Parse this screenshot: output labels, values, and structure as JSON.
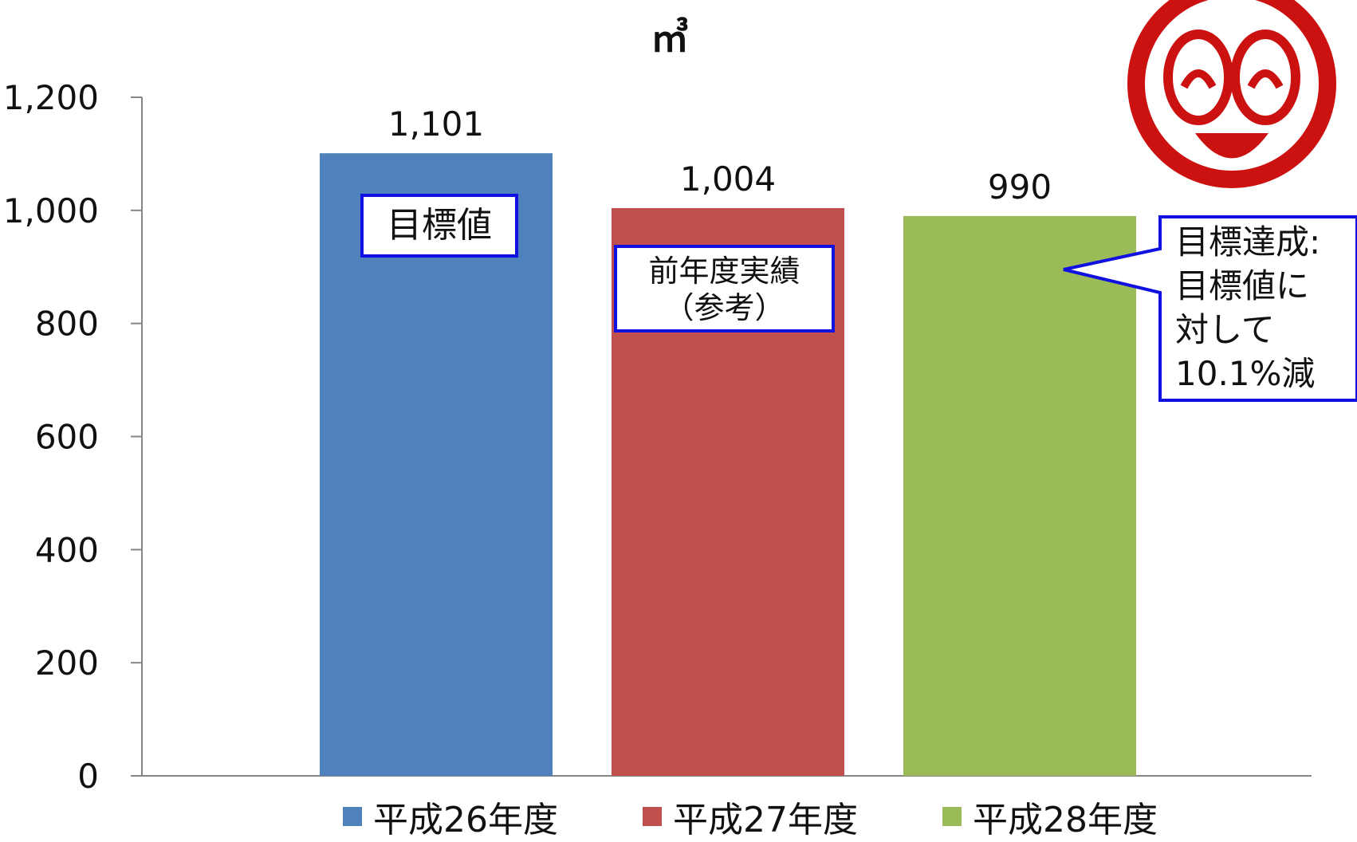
{
  "chart_data": {
    "type": "bar",
    "title": "㎥",
    "xlabel": "",
    "ylabel": "",
    "ylim": [
      0,
      1200
    ],
    "yticks": [
      "0",
      "200",
      "400",
      "600",
      "800",
      "1,000",
      "1,200"
    ],
    "ytick_values": [
      0,
      200,
      400,
      600,
      800,
      1000,
      1200
    ],
    "grid": false,
    "legend_position": "bottom",
    "series": [
      {
        "name": "平成26年度",
        "value": 1101,
        "value_label": "1,101",
        "color": "#4f81bd"
      },
      {
        "name": "平成27年度",
        "value": 1004,
        "value_label": "1,004",
        "color": "#c0504d"
      },
      {
        "name": "平成28年度",
        "value": 990,
        "value_label": "990",
        "color": "#9bbb59"
      }
    ],
    "annotations": {
      "target_box": "目標値",
      "prev_year_line1": "前年度実績",
      "prev_year_line2": "（参考）",
      "callout_line1": "目標達成:",
      "callout_line2": "目標値に",
      "callout_line3": "対して",
      "callout_line4": "10.1%減"
    }
  },
  "mascot": {
    "icon": "smiling-face-icon",
    "color": "#cc1111"
  },
  "annotation_border_color": "#1010e0"
}
